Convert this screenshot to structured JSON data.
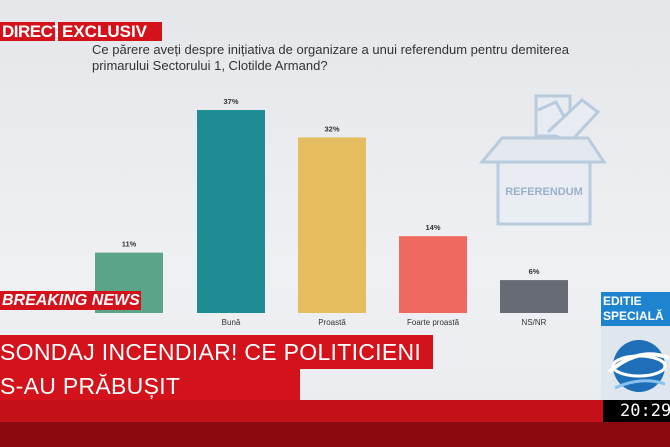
{
  "top_tags": {
    "direct": "DIRECT",
    "exclusiv": "EXCLUSIV"
  },
  "question": "Ce părere aveți despre inițiativa de organizare a unui referendum pentru demiterea primarului Sectorului 1, Clotilde Armand?",
  "ballot_box_label": "REFERENDUM",
  "chart_data": {
    "type": "bar",
    "categories": [
      "",
      "Bună",
      "Proastă",
      "Foarte proastă",
      "NS/NR"
    ],
    "values": [
      11,
      37,
      32,
      14,
      6
    ],
    "value_labels": [
      "11%",
      "37%",
      "32%",
      "14%",
      "6%"
    ],
    "colors": [
      "#5aa488",
      "#1f8c93",
      "#e4bd60",
      "#f0695f",
      "#676b73"
    ],
    "ylim": [
      0,
      37
    ],
    "grid": false,
    "title": "",
    "xlabel": "",
    "ylabel": ""
  },
  "breaking_label": "BREAKING NEWS",
  "headline": [
    "SONDAJ INCENDIAR! CE POLITICIENI",
    "S-AU PRĂBUȘIT"
  ],
  "edition_badge": [
    "EDITIE",
    "SPECIALĂ"
  ],
  "clock": "20:29",
  "colors": {
    "brand_red": "#d4121b",
    "edition_blue": "#1f84d0"
  }
}
